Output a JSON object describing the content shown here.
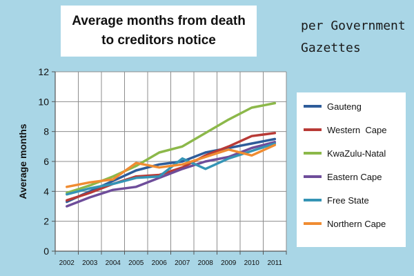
{
  "chart_data": {
    "type": "line",
    "title_lines": [
      "Average months from death",
      "to creditors notice"
    ],
    "subtitle_lines": [
      "per Government",
      "Gazettes"
    ],
    "xlabel": "",
    "ylabel": "Average months",
    "ylim": [
      0,
      12
    ],
    "yticks": [
      0,
      2,
      4,
      6,
      8,
      10,
      12
    ],
    "grid": true,
    "legend_position": "right",
    "x": [
      "2002",
      "2003",
      "2004",
      "2005",
      "2006",
      "2007",
      "2008",
      "2009",
      "2010",
      "2011"
    ],
    "series": [
      {
        "name": "Gauteng",
        "color": "#2e5c9a",
        "values": [
          3.3,
          4.0,
          4.7,
          5.4,
          5.8,
          6.0,
          6.6,
          6.9,
          7.2,
          7.5
        ]
      },
      {
        "name": "Western  Cape",
        "color": "#b83a36",
        "values": [
          3.4,
          3.9,
          4.5,
          5.0,
          5.1,
          5.6,
          6.4,
          7.0,
          7.7,
          7.9
        ]
      },
      {
        "name": "KwaZulu-Natal",
        "color": "#8cb84a",
        "values": [
          3.9,
          4.4,
          5.0,
          5.7,
          6.6,
          7.0,
          7.9,
          8.8,
          9.6,
          9.9
        ]
      },
      {
        "name": "Eastern Cape",
        "color": "#6e4d9a",
        "values": [
          3.0,
          3.6,
          4.1,
          4.3,
          4.9,
          5.5,
          6.0,
          6.3,
          6.9,
          7.3
        ]
      },
      {
        "name": "Free State",
        "color": "#3594b5",
        "values": [
          3.8,
          4.2,
          4.5,
          4.9,
          5.0,
          6.2,
          5.5,
          6.2,
          6.7,
          7.2
        ]
      },
      {
        "name": "Northern Cape",
        "color": "#f08c32",
        "values": [
          4.3,
          4.6,
          4.8,
          5.9,
          5.6,
          5.8,
          6.3,
          6.8,
          6.4,
          7.1
        ]
      }
    ]
  }
}
